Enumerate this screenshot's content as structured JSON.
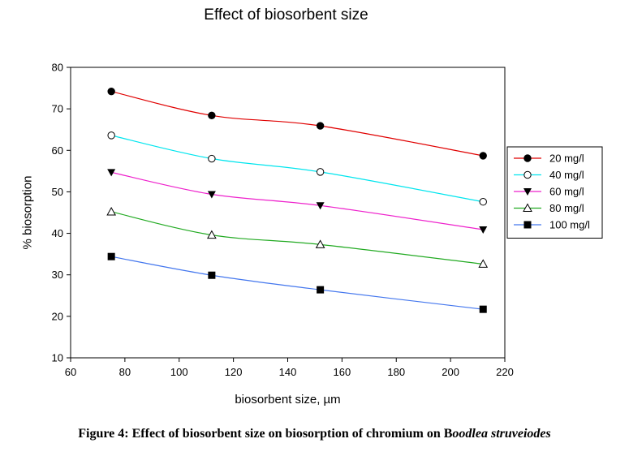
{
  "chart_data": {
    "type": "line",
    "title": "Effect of biosorbent size",
    "xlabel": "biosorbent size, µm",
    "ylabel": "% biosorption",
    "xlim": [
      60,
      220
    ],
    "ylim": [
      10,
      80
    ],
    "xticks": [
      60,
      80,
      100,
      120,
      140,
      160,
      180,
      200,
      220
    ],
    "yticks": [
      10,
      20,
      30,
      40,
      50,
      60,
      70,
      80
    ],
    "x": [
      75,
      112,
      152,
      212
    ],
    "series": [
      {
        "name": "20 mg/l",
        "color": "#e00000",
        "marker": "filled-circle",
        "values": [
          74.2,
          68.4,
          65.9,
          58.7
        ]
      },
      {
        "name": "40 mg/l",
        "color": "#00e5ee",
        "marker": "open-circle",
        "values": [
          63.6,
          58.0,
          54.8,
          47.6
        ]
      },
      {
        "name": "60 mg/l",
        "color": "#ee22cc",
        "marker": "filled-triangle-down",
        "values": [
          54.7,
          49.4,
          46.7,
          40.9
        ]
      },
      {
        "name": "80 mg/l",
        "color": "#22aa22",
        "marker": "open-triangle-up",
        "values": [
          45.2,
          39.6,
          37.3,
          32.6
        ]
      },
      {
        "name": "100 mg/l",
        "color": "#4477ee",
        "marker": "filled-square",
        "values": [
          34.4,
          29.9,
          26.4,
          21.7
        ]
      }
    ],
    "legend": "right",
    "grid": false
  },
  "caption": {
    "prefix": "Figure 4: Effect of biosorbent size on biosorption of chromium on B",
    "italic": "oodlea struveiodes"
  }
}
